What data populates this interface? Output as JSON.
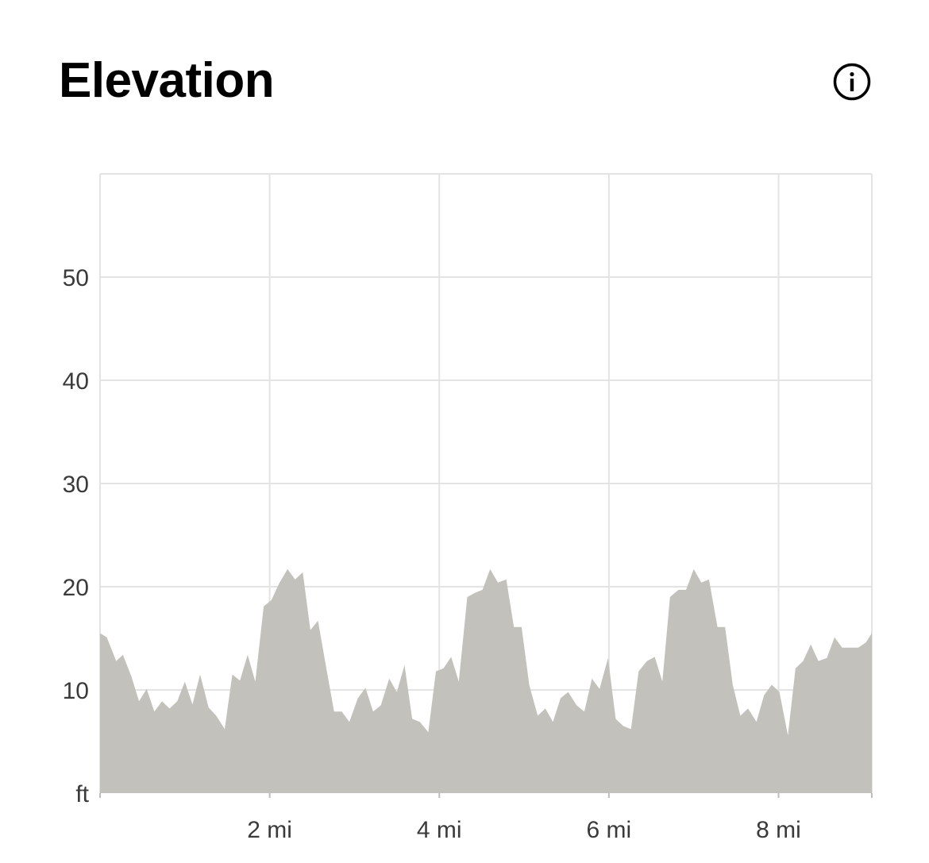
{
  "header": {
    "title": "Elevation",
    "info_icon": "info-circle-icon"
  },
  "colors": {
    "area_fill": "#c2c1bc",
    "grid": "#e3e3e3",
    "text": "#3a3a3a",
    "title": "#000000"
  },
  "chart_data": {
    "type": "area",
    "title": "Elevation",
    "xlabel": "",
    "ylabel": "",
    "y_unit_label": "ft",
    "xlim": [
      0,
      9.1
    ],
    "ylim": [
      0,
      60
    ],
    "grid": true,
    "x_ticks": [
      {
        "value": 2,
        "label": "2 mi"
      },
      {
        "value": 4,
        "label": "4 mi"
      },
      {
        "value": 6,
        "label": "6 mi"
      },
      {
        "value": 8,
        "label": "8 mi"
      }
    ],
    "y_ticks": [
      {
        "value": 10,
        "label": "10"
      },
      {
        "value": 20,
        "label": "20"
      },
      {
        "value": 30,
        "label": "30"
      },
      {
        "value": 40,
        "label": "40"
      },
      {
        "value": 50,
        "label": "50"
      }
    ],
    "series": [
      {
        "x": [
          0,
          0.08,
          0.19,
          0.27,
          0.37,
          0.46,
          0.55,
          0.64,
          0.73,
          0.82,
          0.91,
          1.0,
          1.09,
          1.18,
          1.28,
          1.37,
          1.47,
          1.56,
          1.65,
          1.74,
          1.83,
          1.93,
          2.02,
          2.11,
          2.21,
          2.3,
          2.39,
          2.48,
          2.57,
          2.67,
          2.76,
          2.85,
          2.94,
          3.04,
          3.13,
          3.22,
          3.31,
          3.41,
          3.5,
          3.59,
          3.68,
          3.77,
          3.87,
          3.96,
          4.05,
          4.14,
          4.23,
          4.33,
          4.42,
          4.51,
          4.6,
          4.69,
          4.79,
          4.88,
          4.97,
          5.06,
          5.16,
          5.25,
          5.34,
          5.43,
          5.52,
          5.62,
          5.71,
          5.8,
          5.89,
          5.99,
          6.08,
          6.17,
          6.26,
          6.35,
          6.45,
          6.54,
          6.63,
          6.72,
          6.82,
          6.91,
          7.0,
          7.09,
          7.18,
          7.28,
          7.37,
          7.46,
          7.55,
          7.64,
          7.74,
          7.83,
          7.92,
          8.01,
          8.11,
          8.2,
          8.29,
          8.38,
          8.47,
          8.57,
          8.66,
          8.75,
          8.84,
          8.94,
          9.03,
          9.1
        ],
        "y": [
          15.5,
          15.1,
          12.8,
          13.4,
          11.3,
          8.9,
          10.1,
          7.9,
          8.9,
          8.2,
          8.9,
          10.8,
          8.6,
          11.5,
          8.3,
          7.5,
          6.2,
          11.5,
          10.9,
          13.4,
          10.8,
          18.1,
          18.7,
          20.3,
          21.7,
          20.7,
          21.4,
          15.8,
          16.7,
          12.0,
          7.9,
          7.9,
          6.9,
          9.2,
          10.2,
          7.9,
          8.5,
          11.1,
          9.8,
          12.4,
          7.2,
          6.9,
          5.9,
          11.8,
          12.1,
          13.2,
          10.8,
          19.0,
          19.4,
          19.7,
          21.7,
          20.4,
          20.7,
          16.1,
          16.1,
          10.5,
          7.5,
          8.2,
          6.9,
          9.2,
          9.8,
          8.5,
          7.9,
          11.1,
          10.1,
          13.1,
          7.2,
          6.5,
          6.2,
          11.8,
          12.8,
          13.2,
          10.8,
          19.0,
          19.7,
          19.7,
          21.7,
          20.4,
          20.7,
          16.1,
          16.1,
          10.5,
          7.5,
          8.2,
          6.9,
          9.5,
          10.5,
          9.8,
          5.6,
          12.1,
          12.8,
          14.4,
          12.8,
          13.1,
          15.1,
          14.1,
          14.1,
          14.1,
          14.6,
          15.5
        ]
      }
    ]
  }
}
